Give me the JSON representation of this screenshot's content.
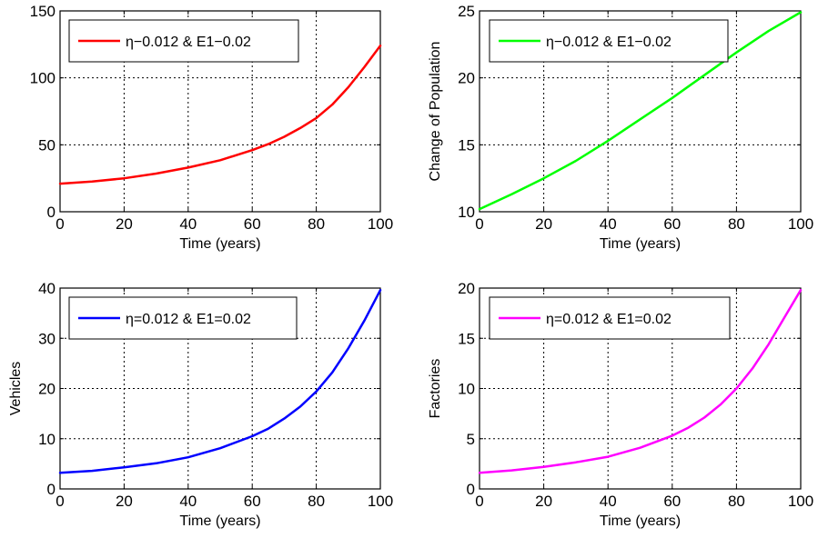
{
  "chart_data": [
    {
      "type": "line",
      "xlabel": "Time (years)",
      "ylabel": "",
      "xlim": [
        0,
        100
      ],
      "ylim": [
        0,
        150
      ],
      "xticks": [
        "0",
        "20",
        "40",
        "60",
        "80",
        "100"
      ],
      "yticks": [
        "0",
        "50",
        "100",
        "150"
      ],
      "grid": true,
      "legend_position": "top",
      "series": [
        {
          "name": "η−0.012 & E1−0.02",
          "color": "#ff0000",
          "x": [
            0,
            10,
            20,
            30,
            40,
            50,
            60,
            65,
            70,
            75,
            80,
            85,
            90,
            95,
            100
          ],
          "y": [
            21,
            22.5,
            25,
            28.5,
            33,
            38.5,
            46,
            50.5,
            56,
            62.5,
            70,
            80,
            93,
            108,
            124
          ]
        }
      ]
    },
    {
      "type": "line",
      "xlabel": "Time (years)",
      "ylabel": "Change of Population",
      "xlim": [
        0,
        100
      ],
      "ylim": [
        10,
        25
      ],
      "xticks": [
        "0",
        "20",
        "40",
        "60",
        "80",
        "100"
      ],
      "yticks": [
        "10",
        "15",
        "20",
        "25"
      ],
      "grid": true,
      "legend_position": "top",
      "series": [
        {
          "name": "η−0.012 & E1−0.02",
          "color": "#00ff00",
          "x": [
            0,
            10,
            20,
            30,
            40,
            50,
            60,
            70,
            80,
            90,
            100
          ],
          "y": [
            10.2,
            11.3,
            12.5,
            13.8,
            15.3,
            16.9,
            18.5,
            20.2,
            21.9,
            23.5,
            24.9
          ]
        }
      ]
    },
    {
      "type": "line",
      "xlabel": "Time (years)",
      "ylabel": "Vehicles",
      "xlim": [
        0,
        100
      ],
      "ylim": [
        0,
        40
      ],
      "xticks": [
        "0",
        "20",
        "40",
        "60",
        "80",
        "100"
      ],
      "yticks": [
        "0",
        "10",
        "20",
        "30",
        "40"
      ],
      "grid": true,
      "legend_position": "top",
      "series": [
        {
          "name": "η=0.012 & E1=0.02",
          "color": "#0000ff",
          "x": [
            0,
            10,
            20,
            30,
            40,
            50,
            60,
            65,
            70,
            75,
            80,
            85,
            90,
            95,
            100
          ],
          "y": [
            3.2,
            3.6,
            4.3,
            5.1,
            6.3,
            8.1,
            10.5,
            12,
            14,
            16.4,
            19.4,
            23.2,
            28,
            33.5,
            39.6
          ]
        }
      ]
    },
    {
      "type": "line",
      "xlabel": "Time (years)",
      "ylabel": "Factories",
      "xlim": [
        0,
        100
      ],
      "ylim": [
        0,
        20
      ],
      "xticks": [
        "0",
        "20",
        "40",
        "60",
        "80",
        "100"
      ],
      "yticks": [
        "0",
        "5",
        "10",
        "15",
        "20"
      ],
      "grid": true,
      "legend_position": "top",
      "series": [
        {
          "name": "η=0.012 & E1=0.02",
          "color": "#ff00ff",
          "x": [
            0,
            10,
            20,
            30,
            40,
            50,
            60,
            65,
            70,
            75,
            80,
            85,
            90,
            95,
            100
          ],
          "y": [
            1.6,
            1.85,
            2.2,
            2.65,
            3.2,
            4.1,
            5.3,
            6.1,
            7.1,
            8.4,
            10,
            12,
            14.4,
            17.1,
            19.8
          ]
        }
      ]
    }
  ]
}
